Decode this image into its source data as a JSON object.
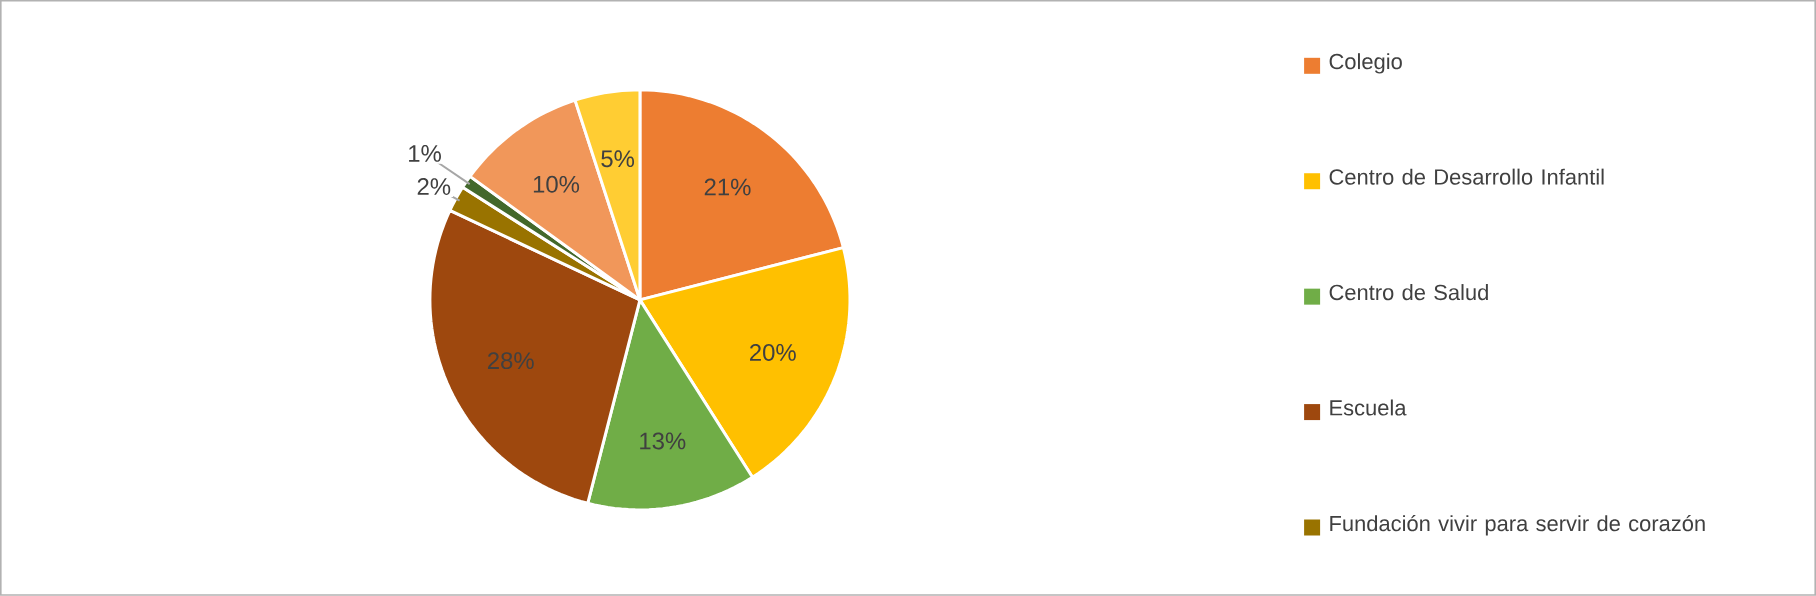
{
  "chart_data": {
    "type": "pie",
    "categories": [
      "Colegio",
      "Centro de Desarrollo Infantil",
      "Centro de Salud",
      "Escuela",
      "Fundación vivir para servir de corazón",
      null,
      null,
      null
    ],
    "values": [
      21,
      20,
      13,
      28,
      2,
      1,
      10,
      5
    ],
    "value_labels": [
      "21%",
      "20%",
      "13%",
      "28%",
      "2%",
      "1%",
      "10%",
      "5%"
    ],
    "colors": [
      "#ed7d31",
      "#ffc000",
      "#70ad47",
      "#9e480e",
      "#997300",
      "#43682b",
      "#f1975a",
      "#ffcd33"
    ],
    "legend": "right"
  }
}
